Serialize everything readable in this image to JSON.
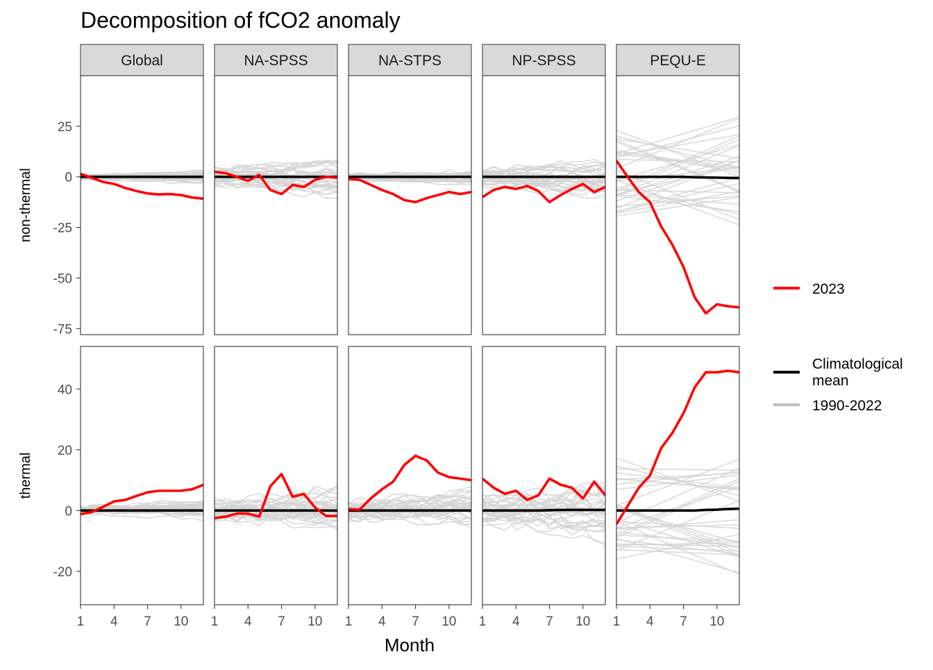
{
  "chart_data": {
    "type": "line",
    "title": "Decomposition of fCO2 anomaly",
    "xlabel": "Month",
    "x": [
      1,
      2,
      3,
      4,
      5,
      6,
      7,
      8,
      9,
      10,
      11,
      12
    ],
    "x_ticks": [
      1,
      4,
      7,
      10
    ],
    "panels_columns": [
      "Global",
      "NA-SPSS",
      "NA-STPS",
      "NP-SPSS",
      "PEQU-E"
    ],
    "panel_rows": [
      {
        "label": "non-thermal",
        "ylim": [
          -78,
          50
        ],
        "yticks": [
          25,
          0,
          -25,
          -50,
          -75
        ]
      },
      {
        "label": "thermal",
        "ylim": [
          -31,
          54
        ],
        "yticks": [
          40,
          20,
          0,
          -20
        ]
      }
    ],
    "legend": {
      "position": "right",
      "entries": [
        {
          "label": "2023",
          "color": "#ff0000"
        },
        {
          "label": "Climatological mean",
          "color": "#000000"
        },
        {
          "label": "1990-2022",
          "color": "#bebebe"
        }
      ]
    },
    "colors": {
      "y2023": "#ff0000",
      "climatology": "#000000",
      "historical": "#d3d3d3",
      "strip": "#d9d9d9"
    },
    "series": {
      "non-thermal": {
        "Global": {
          "y2023": [
            1.5,
            -0.5,
            -2.5,
            -3.5,
            -5.5,
            -7,
            -8.2,
            -8.7,
            -8.5,
            -9,
            -10.2,
            -10.8
          ],
          "climatology": [
            0,
            0,
            0,
            0,
            0,
            0,
            0,
            0,
            0,
            0,
            0,
            0
          ]
        },
        "NA-SPSS": {
          "y2023": [
            2.5,
            1.8,
            0,
            -2,
            1,
            -6.5,
            -8.5,
            -4,
            -5,
            -1.5,
            0,
            -0.5
          ],
          "climatology": [
            0,
            0,
            0,
            0,
            0,
            0,
            0,
            0,
            0,
            0,
            0,
            0
          ]
        },
        "NA-STPS": {
          "y2023": [
            -1,
            -1.5,
            -4,
            -6.5,
            -8.5,
            -11.5,
            -12.5,
            -10.5,
            -9,
            -7.5,
            -8.5,
            -7.5
          ],
          "climatology": [
            0,
            0,
            0,
            0,
            0,
            0,
            0,
            0,
            0,
            0,
            0,
            0
          ]
        },
        "NP-SPSS": {
          "y2023": [
            -10,
            -6.5,
            -5,
            -6,
            -4.5,
            -7,
            -12.5,
            -9,
            -6,
            -3.5,
            -7.5,
            -5
          ],
          "climatology": [
            0,
            0,
            0,
            0,
            0,
            0,
            0,
            0,
            0,
            0,
            0,
            0
          ]
        },
        "PEQU-E": {
          "y2023": [
            8,
            0,
            -7.5,
            -12.5,
            -24.5,
            -33.5,
            -44.5,
            -59.5,
            -67.5,
            -63,
            -64,
            -64.5
          ],
          "climatology": [
            0,
            0,
            0,
            0,
            0,
            0,
            0,
            -0.2,
            -0.3,
            -0.4,
            -0.5,
            -0.6
          ]
        }
      },
      "thermal": {
        "Global": {
          "y2023": [
            -1.2,
            -0.5,
            1.2,
            3,
            3.5,
            4.8,
            6,
            6.5,
            6.5,
            6.5,
            7,
            8.5
          ],
          "climatology": [
            0,
            0,
            0,
            0,
            0,
            0,
            0,
            0,
            0,
            0,
            0,
            0
          ]
        },
        "NA-SPSS": {
          "y2023": [
            -2.5,
            -2,
            -1,
            -1,
            -2,
            8,
            12,
            4.5,
            5.5,
            1,
            -1.8,
            -1.8
          ],
          "climatology": [
            0,
            0,
            0,
            0,
            0,
            0,
            0,
            0,
            0,
            0,
            0,
            0
          ]
        },
        "NA-STPS": {
          "y2023": [
            0.5,
            0.3,
            4,
            7,
            9.5,
            15,
            18,
            16.5,
            12.5,
            11,
            10.5,
            10
          ],
          "climatology": [
            0,
            0,
            0,
            0,
            0,
            0,
            0,
            0,
            0,
            0,
            0,
            0
          ]
        },
        "NP-SPSS": {
          "y2023": [
            10.5,
            7.5,
            5.5,
            6.5,
            3.5,
            5,
            10.5,
            8.5,
            7.5,
            4,
            9.5,
            5
          ],
          "climatology": [
            0,
            0,
            0,
            0,
            0,
            0,
            0.1,
            0.2,
            0.2,
            0.2,
            0.2,
            0.2
          ]
        },
        "PEQU-E": {
          "y2023": [
            -4.5,
            1.5,
            7.5,
            11.5,
            20.5,
            25.5,
            32,
            40.5,
            45.5,
            45.5,
            46,
            45.5
          ],
          "climatology": [
            0,
            0,
            0,
            0,
            0,
            0,
            0,
            0,
            0.2,
            0.3,
            0.5,
            0.6
          ]
        }
      }
    },
    "historical_spread": {
      "non-thermal": {
        "Global": 4,
        "NA-SPSS": 12,
        "NA-STPS": 5,
        "NP-SPSS": 12,
        "PEQU-E": 45
      },
      "thermal": {
        "Global": 4,
        "NA-SPSS": 10,
        "NA-STPS": 9,
        "NP-SPSS": 13,
        "PEQU-E": 35
      }
    }
  }
}
